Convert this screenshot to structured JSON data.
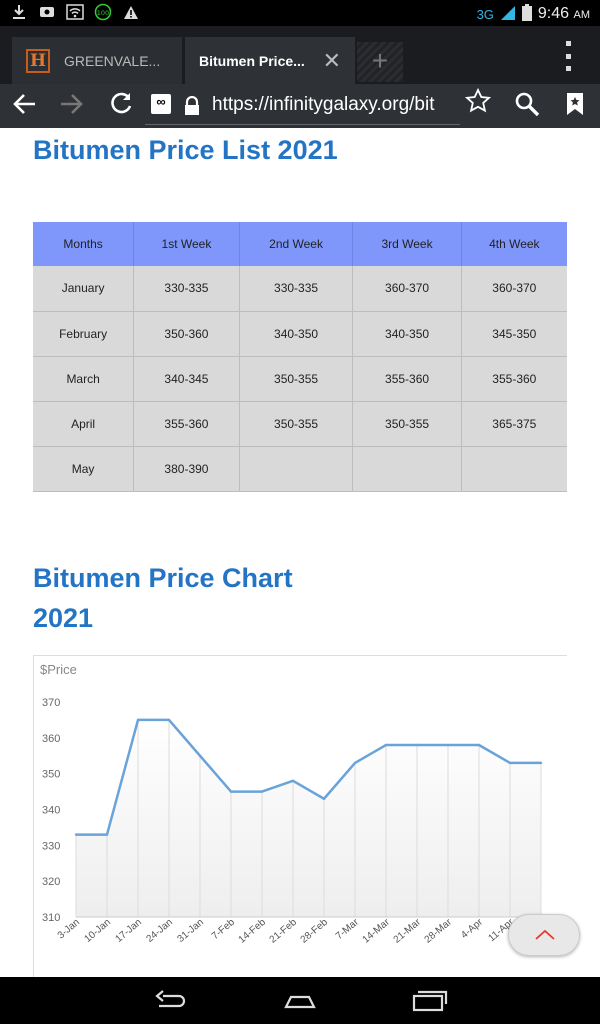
{
  "status_bar": {
    "network": "3G",
    "time": "9:46",
    "ampm": "AM",
    "notification_badge": "100"
  },
  "tabs": [
    {
      "label": "GREENVALE...",
      "favicon_letter": "H",
      "active": false
    },
    {
      "label": "Bitumen Price...",
      "active": true
    }
  ],
  "toolbar": {
    "url": "https://infinitygalaxy.org/bit"
  },
  "page": {
    "list_title": "Bitumen Price List 2021",
    "chart_title": "Bitumen Price Chart 2021"
  },
  "table": {
    "headers": [
      "Months",
      "1st Week",
      "2nd Week",
      "3rd Week",
      "4th Week"
    ],
    "rows": [
      [
        "January",
        "330-335",
        "330-335",
        "360-370",
        "360-370"
      ],
      [
        "February",
        "350-360",
        "340-350",
        "340-350",
        "345-350"
      ],
      [
        "March",
        "340-345",
        "350-355",
        "355-360",
        "355-360"
      ],
      [
        "April",
        "355-360",
        "350-355",
        "350-355",
        "365-375"
      ],
      [
        "May",
        "380-390",
        "",
        "",
        ""
      ]
    ]
  },
  "chart_data": {
    "type": "line",
    "ylabel": "$Price",
    "ylim": [
      310,
      370
    ],
    "yticks": [
      310,
      320,
      330,
      340,
      350,
      360,
      370
    ],
    "grid": "vertical",
    "x": [
      "3-Jan",
      "10-Jan",
      "17-Jan",
      "24-Jan",
      "31-Jan",
      "7-Feb",
      "14-Feb",
      "21-Feb",
      "28-Feb",
      "7-Mar",
      "14-Mar",
      "21-Mar",
      "28-Mar",
      "4-Apr",
      "11-Apr",
      "18-A"
    ],
    "series": [
      {
        "values": [
          333,
          333,
          365,
          365,
          355,
          345,
          345,
          348,
          343,
          353,
          358,
          358,
          358,
          358,
          353,
          353
        ]
      }
    ],
    "colors": {
      "line": "#6aa3d9"
    }
  }
}
